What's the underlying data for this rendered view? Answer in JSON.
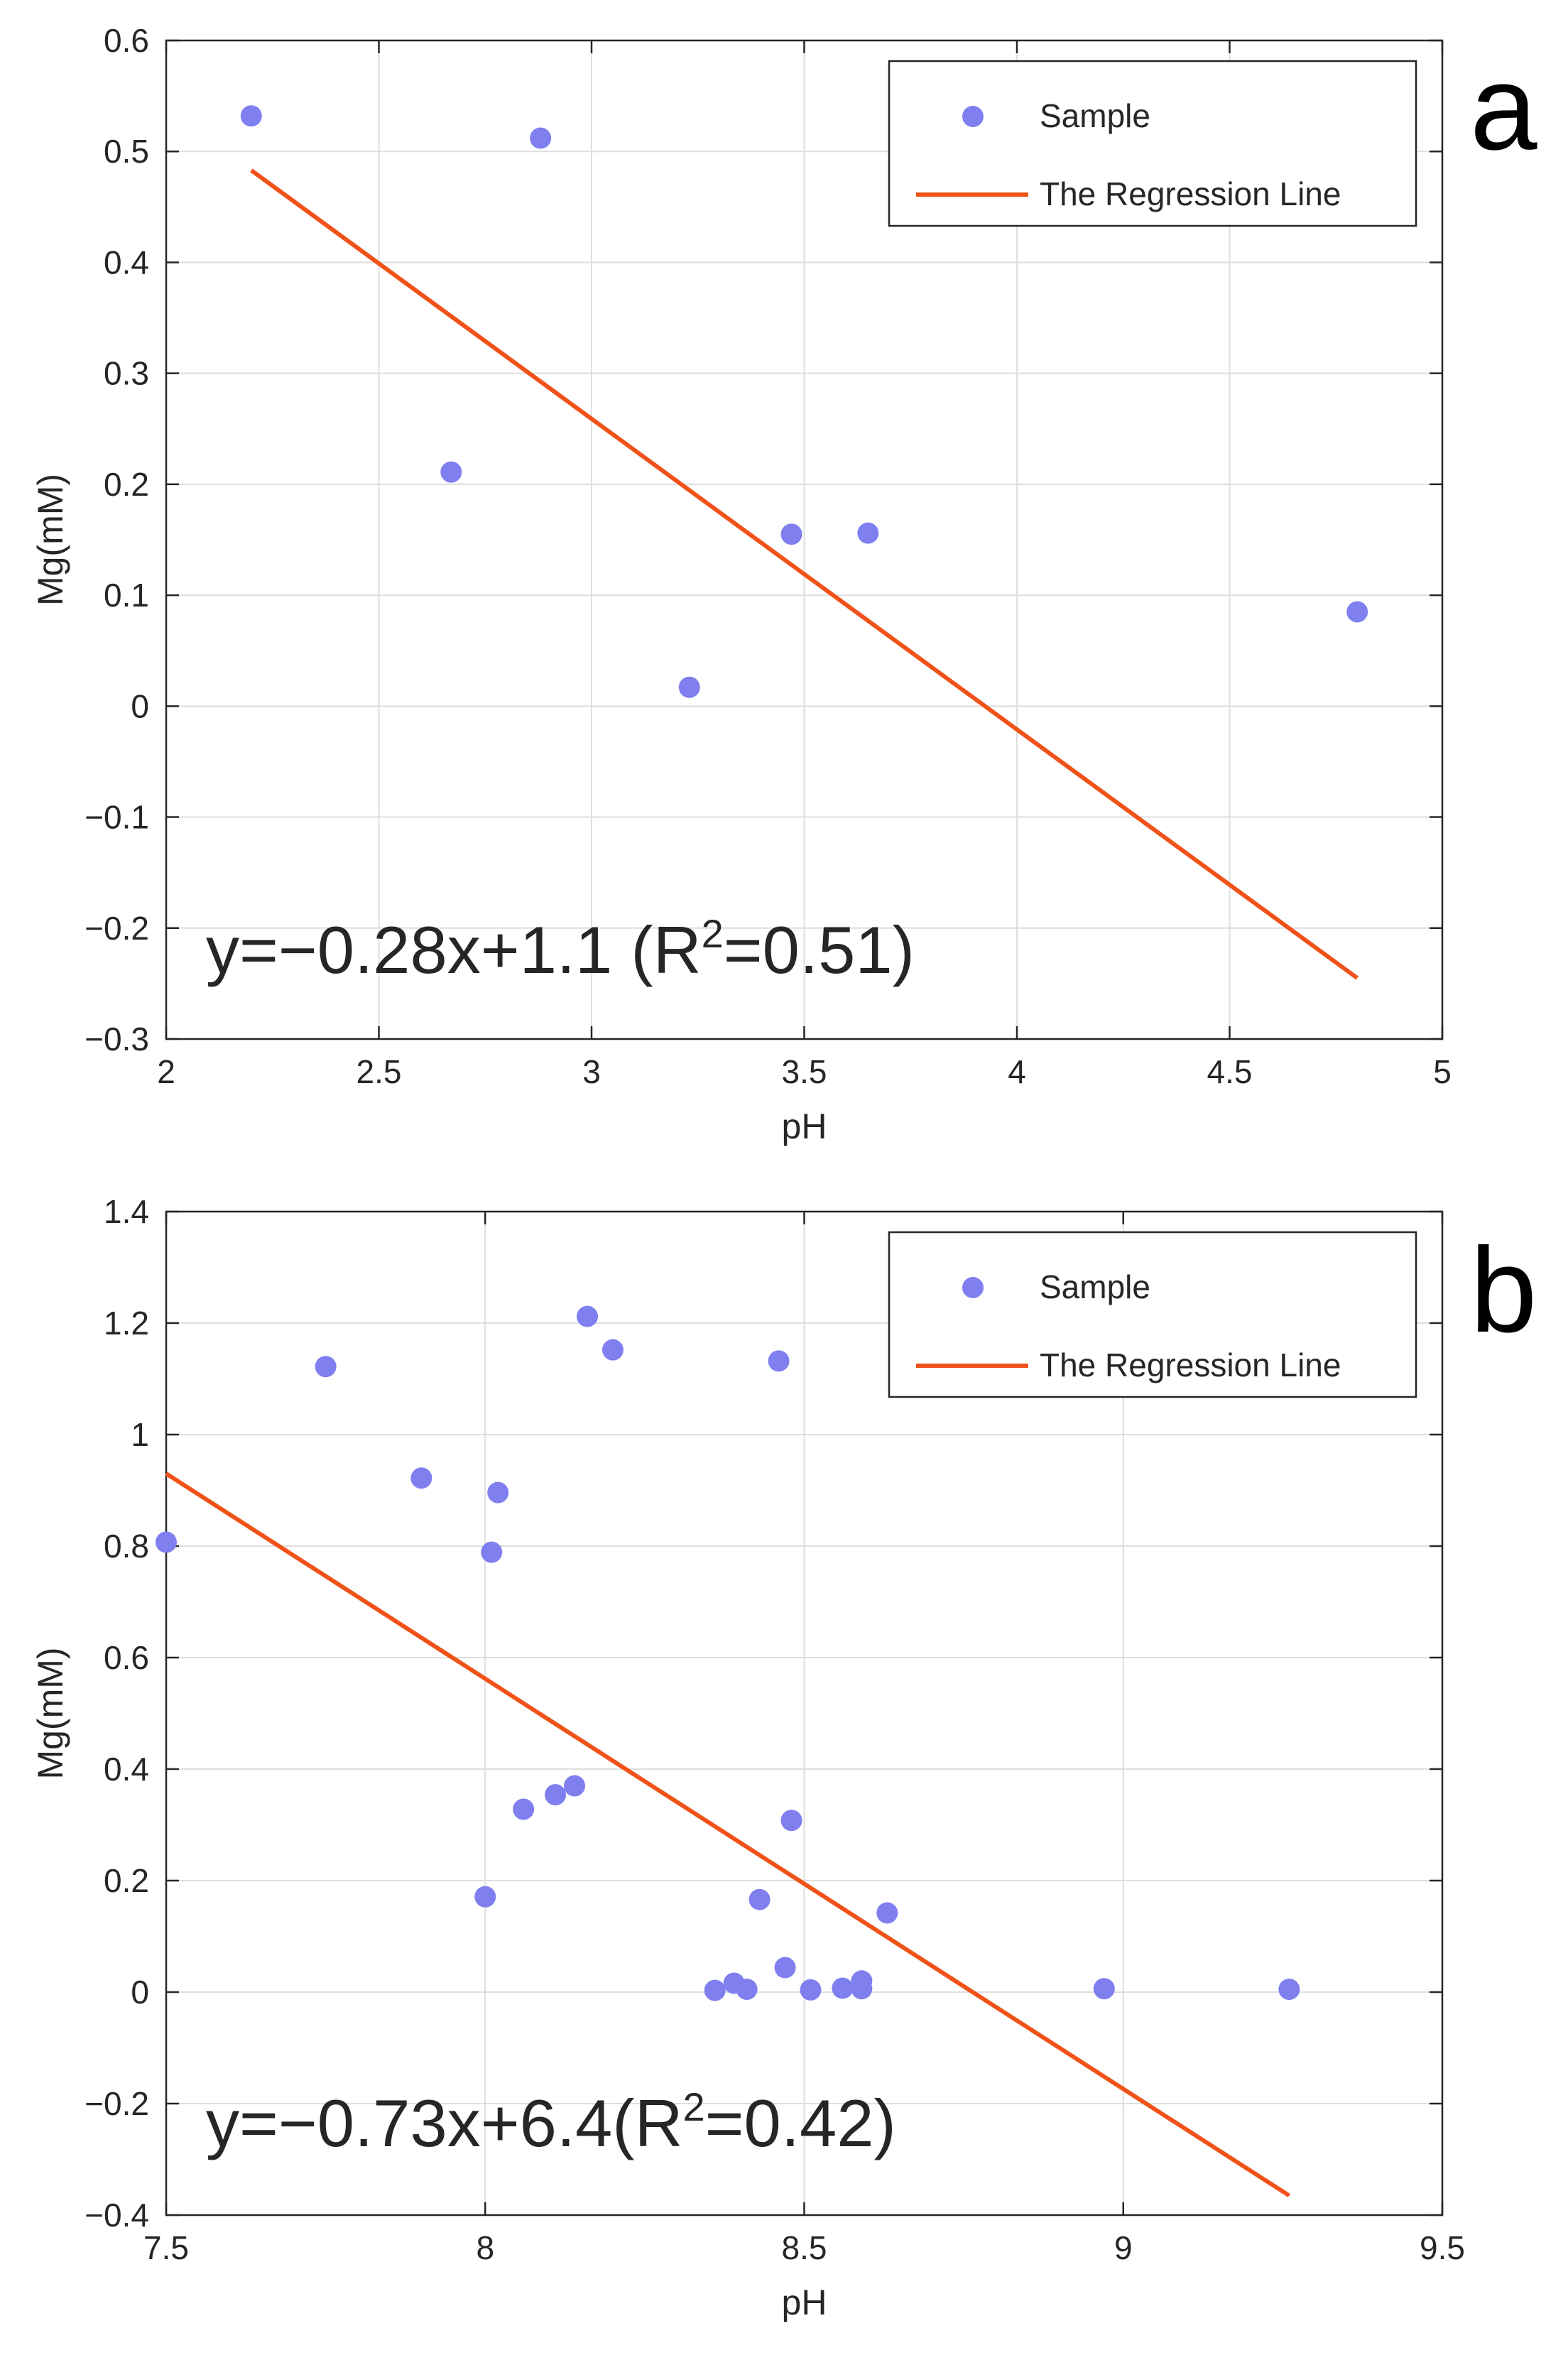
{
  "colors": {
    "marker": "#7f7ff0",
    "line": "#f0521a",
    "grid": "#dedede",
    "axis": "#262626"
  },
  "chart_data": [
    {
      "type": "scatter",
      "panel_label": "a",
      "xlabel": "pH",
      "ylabel": "Mg(mM)",
      "xlim": [
        2,
        5
      ],
      "ylim": [
        -0.3,
        0.6
      ],
      "xticks": [
        2,
        2.5,
        3,
        3.5,
        4,
        4.5,
        5
      ],
      "yticks": [
        -0.3,
        -0.2,
        -0.1,
        0,
        0.1,
        0.2,
        0.3,
        0.4,
        0.5,
        0.6
      ],
      "xtick_labels": [
        "2",
        "2.5",
        "3",
        "3.5",
        "4",
        "4.5",
        "5"
      ],
      "ytick_labels": [
        "−0.3",
        "−0.2",
        "−0.1",
        "0",
        "0.1",
        "0.2",
        "0.3",
        "0.4",
        "0.5",
        "0.6"
      ],
      "grid": true,
      "legend_position": "top-right",
      "legend": {
        "sample": "Sample",
        "line": "The Regression Line"
      },
      "series": [
        {
          "name": "Sample",
          "x": [
            2.2,
            2.67,
            2.88,
            3.23,
            3.47,
            3.65,
            4.8
          ],
          "y": [
            0.532,
            0.211,
            0.512,
            0.017,
            0.155,
            0.156,
            0.085
          ]
        }
      ],
      "regression": {
        "x": [
          2.2,
          4.8
        ],
        "y": [
          0.483,
          -0.245
        ]
      },
      "annotation": {
        "prefix": "y=−0.28x+1.1 (R",
        "sup": "2",
        "suffix": "=0.51)"
      }
    },
    {
      "type": "scatter",
      "panel_label": "b",
      "xlabel": "pH",
      "ylabel": "Mg(mM)",
      "xlim": [
        7.5,
        9.5
      ],
      "ylim": [
        -0.4,
        1.4
      ],
      "xticks": [
        7.5,
        8,
        8.5,
        9,
        9.5
      ],
      "yticks": [
        -0.4,
        -0.2,
        0,
        0.2,
        0.4,
        0.6,
        0.8,
        1,
        1.2,
        1.4
      ],
      "xtick_labels": [
        "7.5",
        "8",
        "8.5",
        "9",
        "9.5"
      ],
      "ytick_labels": [
        "−0.4",
        "−0.2",
        "0",
        "0.2",
        "0.4",
        "0.6",
        "0.8",
        "1",
        "1.2",
        "1.4"
      ],
      "grid": true,
      "legend_position": "top-right",
      "legend": {
        "sample": "Sample",
        "line": "The Regression Line"
      },
      "series": [
        {
          "name": "Sample",
          "x": [
            7.5,
            7.75,
            7.9,
            8.0,
            8.01,
            8.02,
            8.06,
            8.11,
            8.14,
            8.16,
            8.2,
            8.36,
            8.39,
            8.41,
            8.43,
            8.46,
            8.47,
            8.48,
            8.51,
            8.56,
            8.59,
            8.59,
            8.63,
            8.97,
            9.26
          ],
          "y": [
            0.807,
            1.122,
            0.922,
            0.171,
            0.789,
            0.896,
            0.328,
            0.354,
            0.37,
            1.212,
            1.152,
            0.003,
            0.016,
            0.005,
            0.166,
            1.132,
            0.044,
            0.308,
            0.004,
            0.007,
            0.006,
            0.02,
            0.142,
            0.006,
            0.005
          ]
        }
      ],
      "regression": {
        "x": [
          7.5,
          9.26
        ],
        "y": [
          0.93,
          -0.365
        ]
      },
      "annotation": {
        "prefix": "y=−0.73x+6.4(R",
        "sup": "2",
        "suffix": "=0.42)"
      }
    }
  ]
}
